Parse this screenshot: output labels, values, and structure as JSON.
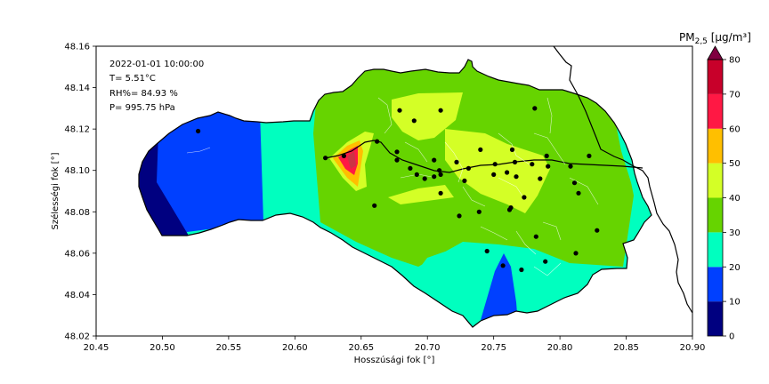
{
  "annotations": {
    "datetime": "2022-01-01 10:00:00",
    "temperature": "T= 5.51°C",
    "humidity": "RH%= 84.93 %",
    "pressure": "P= 995.75 hPa"
  },
  "colorbar": {
    "title_main": "PM",
    "title_sub": "2,5",
    "title_unit": " [µg/m³]"
  },
  "chart_data": {
    "type": "heatmap",
    "xlabel": "Hosszúsági fok [°]",
    "ylabel": "Szélességi fok [°]",
    "xlim": [
      20.45,
      20.9
    ],
    "ylim": [
      48.02,
      48.16
    ],
    "xticks": [
      "20.45",
      "20.50",
      "20.55",
      "20.60",
      "20.65",
      "20.70",
      "20.75",
      "20.80",
      "20.85",
      "20.90"
    ],
    "yticks": [
      "48.02",
      "48.04",
      "48.06",
      "48.08",
      "48.10",
      "48.12",
      "48.14",
      "48.16"
    ],
    "grid": false,
    "colorbar_levels": [
      0,
      10,
      20,
      30,
      40,
      50,
      60,
      70,
      80
    ],
    "colorbar_ticks": [
      "0",
      "10",
      "20",
      "30",
      "40",
      "50",
      "60",
      "70",
      "80"
    ],
    "colorbar_extend": "max",
    "colorbar_colors": [
      "#000080",
      "#0040ff",
      "#00ffbf",
      "#66d400",
      "#d4ff26",
      "#ffbf00",
      "#ff1844",
      "#c8002a"
    ],
    "colorbar_extend_color": "#800040",
    "sensor_points": [
      [
        20.527,
        48.119
      ],
      [
        20.637,
        48.107
      ],
      [
        20.662,
        48.114
      ],
      [
        20.623,
        48.106
      ],
      [
        20.66,
        48.083
      ],
      [
        20.677,
        48.109
      ],
      [
        20.677,
        48.105
      ],
      [
        20.679,
        48.129
      ],
      [
        20.69,
        48.124
      ],
      [
        20.71,
        48.129
      ],
      [
        20.687,
        48.101
      ],
      [
        20.692,
        48.098
      ],
      [
        20.698,
        48.096
      ],
      [
        20.705,
        48.105
      ],
      [
        20.705,
        48.097
      ],
      [
        20.709,
        48.1
      ],
      [
        20.71,
        48.098
      ],
      [
        20.71,
        48.089
      ],
      [
        20.722,
        48.104
      ],
      [
        20.724,
        48.078
      ],
      [
        20.728,
        48.095
      ],
      [
        20.731,
        48.101
      ],
      [
        20.739,
        48.08
      ],
      [
        20.74,
        48.11
      ],
      [
        20.745,
        48.061
      ],
      [
        20.75,
        48.098
      ],
      [
        20.751,
        48.103
      ],
      [
        20.757,
        48.054
      ],
      [
        20.76,
        48.099
      ],
      [
        20.762,
        48.081
      ],
      [
        20.763,
        48.082
      ],
      [
        20.764,
        48.11
      ],
      [
        20.766,
        48.104
      ],
      [
        20.767,
        48.097
      ],
      [
        20.771,
        48.052
      ],
      [
        20.773,
        48.087
      ],
      [
        20.779,
        48.103
      ],
      [
        20.781,
        48.13
      ],
      [
        20.782,
        48.068
      ],
      [
        20.785,
        48.096
      ],
      [
        20.789,
        48.056
      ],
      [
        20.79,
        48.107
      ],
      [
        20.791,
        48.102
      ],
      [
        20.808,
        48.102
      ],
      [
        20.811,
        48.094
      ],
      [
        20.812,
        48.06
      ],
      [
        20.814,
        48.089
      ],
      [
        20.822,
        48.107
      ],
      [
        20.828,
        48.071
      ]
    ]
  }
}
